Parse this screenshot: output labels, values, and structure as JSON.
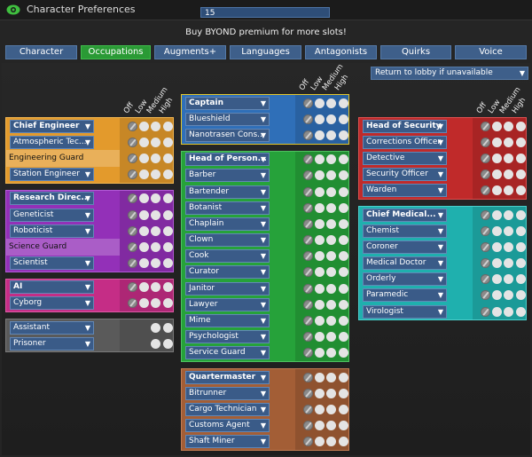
{
  "window": {
    "title": "Character Preferences"
  },
  "slot": "15",
  "premium_note": "Buy BYOND premium for more slots!",
  "tabs": [
    {
      "label": "Character",
      "active": false
    },
    {
      "label": "Occupations",
      "active": true
    },
    {
      "label": "Augments+",
      "active": false
    },
    {
      "label": "Languages",
      "active": false
    },
    {
      "label": "Antagonists",
      "active": false
    },
    {
      "label": "Quirks",
      "active": false
    },
    {
      "label": "Voice",
      "active": false
    }
  ],
  "fallback_option": "Return to lobby if unavailable",
  "priority_labels": [
    "Off",
    "Low",
    "Medium",
    "High"
  ],
  "columns": [
    [
      {
        "color": "#e39a2c",
        "border": "#f2b650",
        "jobs": [
          {
            "name": "Chief Engineer",
            "head": true
          },
          {
            "name": "Atmospheric Tec..."
          },
          {
            "name": "Engineering Guard",
            "plain": true
          },
          {
            "name": "Station Engineer"
          }
        ]
      },
      {
        "color": "#9330b8",
        "border": "#b25ad6",
        "jobs": [
          {
            "name": "Research Direc...",
            "head": true
          },
          {
            "name": "Geneticist"
          },
          {
            "name": "Roboticist"
          },
          {
            "name": "Science Guard",
            "plain": true
          },
          {
            "name": "Scientist"
          }
        ]
      },
      {
        "color": "#c52d86",
        "border": "#dd5aa5",
        "jobs": [
          {
            "name": "AI",
            "head": true
          },
          {
            "name": "Cyborg"
          }
        ]
      },
      {
        "color": "#5a5a5a",
        "border": "#7a7a7a",
        "limited": true,
        "jobs": [
          {
            "name": "Assistant"
          },
          {
            "name": "Prisoner"
          }
        ]
      }
    ],
    [
      {
        "color": "#2f6fb8",
        "border": "#e2c62c",
        "jobs": [
          {
            "name": "Captain",
            "head": true
          },
          {
            "name": "Blueshield"
          },
          {
            "name": "Nanotrasen Cons..."
          }
        ]
      },
      {
        "color": "#26a23a",
        "border": "#4fc060",
        "jobs": [
          {
            "name": "Head of Person...",
            "head": true
          },
          {
            "name": "Barber"
          },
          {
            "name": "Bartender"
          },
          {
            "name": "Botanist"
          },
          {
            "name": "Chaplain"
          },
          {
            "name": "Clown"
          },
          {
            "name": "Cook"
          },
          {
            "name": "Curator"
          },
          {
            "name": "Janitor"
          },
          {
            "name": "Lawyer"
          },
          {
            "name": "Mime"
          },
          {
            "name": "Psychologist"
          },
          {
            "name": "Service Guard"
          }
        ]
      },
      {
        "color": "#a35e36",
        "border": "#c07a52",
        "jobs": [
          {
            "name": "Quartermaster",
            "head": true
          },
          {
            "name": "Bitrunner"
          },
          {
            "name": "Cargo Technician"
          },
          {
            "name": "Customs Agent"
          },
          {
            "name": "Shaft Miner"
          }
        ]
      }
    ],
    [
      {
        "color": "#c02a2a",
        "border": "#de5050",
        "jobs": [
          {
            "name": "Head of Security",
            "head": true
          },
          {
            "name": "Corrections Officer"
          },
          {
            "name": "Detective"
          },
          {
            "name": "Security Officer"
          },
          {
            "name": "Warden"
          }
        ]
      },
      {
        "color": "#1fb0ae",
        "border": "#4ccfcc",
        "jobs": [
          {
            "name": "Chief Medical...",
            "head": true
          },
          {
            "name": "Chemist"
          },
          {
            "name": "Coroner"
          },
          {
            "name": "Medical Doctor"
          },
          {
            "name": "Orderly"
          },
          {
            "name": "Paramedic"
          },
          {
            "name": "Virologist"
          }
        ]
      }
    ]
  ]
}
